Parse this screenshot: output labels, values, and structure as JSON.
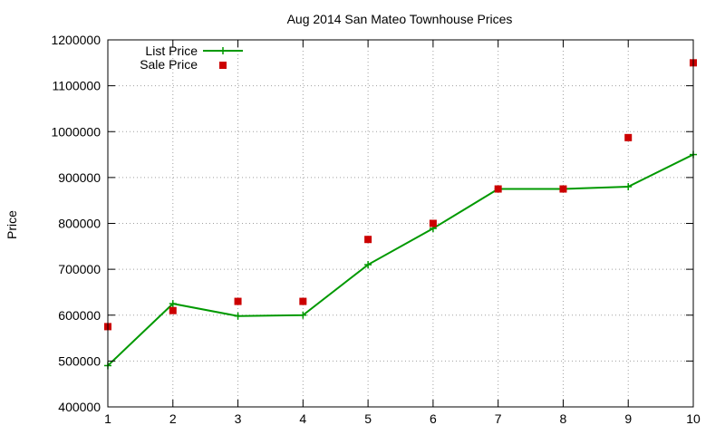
{
  "chart_data": {
    "type": "line",
    "title": "Aug 2014 San Mateo Townhouse Prices",
    "xlabel": "",
    "ylabel": "Price",
    "x": [
      1,
      2,
      3,
      4,
      5,
      6,
      7,
      8,
      9,
      10
    ],
    "xlim": [
      1,
      10
    ],
    "ylim": [
      400000,
      1200000
    ],
    "xticks": [
      1,
      2,
      3,
      4,
      5,
      6,
      7,
      8,
      9,
      10
    ],
    "yticks": [
      400000,
      500000,
      600000,
      700000,
      800000,
      900000,
      1000000,
      1100000,
      1200000
    ],
    "grid": true,
    "legend_position": "top-left",
    "series": [
      {
        "name": "List Price",
        "style": "line-with-plus-markers",
        "color": "#009900",
        "values": [
          490000,
          625000,
          598000,
          600000,
          710000,
          789000,
          875000,
          875000,
          880000,
          950000
        ]
      },
      {
        "name": "Sale Price",
        "style": "square-markers",
        "color": "#cc0000",
        "values": [
          575000,
          610000,
          630000,
          630000,
          765000,
          800000,
          875000,
          875000,
          987000,
          1150000
        ]
      }
    ]
  }
}
